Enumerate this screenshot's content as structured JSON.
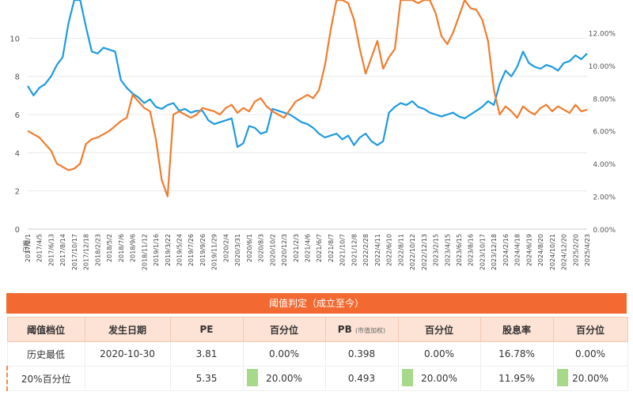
{
  "colors": {
    "pe_line": "#1e9be0",
    "pb_line": "#f07c2e",
    "grid": "#e8e8e8",
    "header_orange": "#f26a31",
    "header_row": "#fce3d6",
    "percentile_fill": "#a7d98b"
  },
  "chart_data": {
    "type": "line",
    "title": "",
    "left_axis": {
      "label": "",
      "ylim": [
        0,
        12
      ],
      "ticks": [
        "0",
        "2",
        "4",
        "6",
        "8",
        "10"
      ]
    },
    "right_axis": {
      "label": "",
      "ylim": [
        0,
        0.14
      ],
      "ticks": [
        "0.00%",
        "2.00%",
        "4.00%",
        "6.00%",
        "8.00%",
        "10.00%",
        "12.00%"
      ]
    },
    "x_label": "日期",
    "x_ticks": [
      "2017/2/1",
      "2017/4/5",
      "2017/6/13",
      "2017/8/14",
      "2017/10/17",
      "2017/12/18",
      "2018/2/23",
      "2018/5/2",
      "2018/7/6",
      "2018/9/6",
      "2018/11/12",
      "2019/1/16",
      "2019/3/22",
      "2019/5/24",
      "2019/7/26",
      "2019/9/26",
      "2019/11/29",
      "2020/2/4",
      "2020/3/31",
      "2020/6/1",
      "2020/8/3",
      "2020/10/2",
      "2020/12/3",
      "2021/2/3",
      "2021/4/6",
      "2021/6/7",
      "2021/8/7",
      "2021/10/7",
      "2021/12/8",
      "2022/2/28",
      "2022/4/11",
      "2022/6/10",
      "2022/8/11",
      "2022/10/12",
      "2022/12/13",
      "2023/2/15",
      "2023/4/15",
      "2023/6/15",
      "2023/8/16",
      "2023/10/17",
      "2023/12/18",
      "2024/2/16",
      "2024/4/18",
      "2024/6/19",
      "2024/8/20",
      "2024/10/21",
      "2024/12/20",
      "2025/2/20",
      "2025/4/23"
    ],
    "grid": true,
    "series": [
      {
        "axis": "left",
        "x": [
          0,
          0.5,
          1,
          1.5,
          2,
          2.5,
          3,
          3.5,
          4,
          4.5,
          5,
          5.5,
          6,
          6.5,
          7,
          7.5,
          8,
          8.5,
          9,
          9.5,
          10,
          10.5,
          11,
          11.5,
          12,
          12.5,
          13,
          13.5,
          14,
          14.5,
          15,
          15.5,
          16,
          16.5,
          17,
          17.5,
          18,
          18.5,
          19,
          19.5,
          20,
          20.5,
          21,
          21.5,
          22,
          22.5,
          23,
          23.5,
          24,
          24.5,
          25,
          25.5,
          26,
          26.5,
          27,
          27.5,
          28,
          28.5,
          29,
          29.5,
          30,
          30.5,
          31,
          31.5,
          32,
          32.5,
          33,
          33.5,
          34,
          34.5,
          35,
          35.5,
          36,
          36.5,
          37,
          37.5,
          38,
          38.5,
          39,
          39.5,
          40,
          40.5,
          41,
          41.5,
          42,
          42.5,
          43,
          43.5,
          44,
          44.5,
          45,
          45.5,
          46,
          46.5,
          47,
          47.5,
          48
        ],
        "values": [
          7.5,
          7.0,
          7.4,
          7.6,
          8.0,
          8.6,
          9.0,
          10.8,
          12.0,
          12.2,
          10.6,
          9.3,
          9.2,
          9.5,
          9.4,
          9.3,
          7.8,
          7.4,
          7.1,
          6.9,
          6.6,
          6.8,
          6.4,
          6.3,
          6.5,
          6.6,
          6.2,
          6.3,
          6.1,
          6.2,
          6.2,
          5.7,
          5.5,
          5.6,
          5.7,
          5.8,
          4.3,
          4.5,
          5.4,
          5.3,
          5.0,
          5.1,
          6.3,
          6.2,
          6.1,
          6.0,
          5.8,
          5.6,
          5.5,
          5.3,
          5.0,
          4.8,
          4.9,
          5.0,
          4.7,
          4.9,
          4.4,
          4.8,
          5.0,
          4.6,
          4.4,
          4.6,
          6.1,
          6.4,
          6.6,
          6.5,
          6.7,
          6.4,
          6.3,
          6.1,
          6.0,
          5.9,
          6.0,
          6.1,
          5.9,
          5.8,
          6.0,
          6.2,
          6.4,
          6.7,
          6.5,
          7.6,
          8.3,
          8.0,
          8.5,
          9.3,
          8.7,
          8.5,
          8.4,
          8.6,
          8.5,
          8.3,
          8.7,
          8.8,
          9.1,
          8.9,
          9.2
        ]
      },
      {
        "axis": "right",
        "x": [
          0,
          0.5,
          1,
          1.5,
          2,
          2.5,
          3,
          3.5,
          4,
          4.5,
          5,
          5.5,
          6,
          6.5,
          7,
          7.5,
          8,
          8.5,
          9,
          9.5,
          10,
          10.5,
          11,
          11.5,
          12,
          12.5,
          13,
          13.5,
          14,
          14.5,
          15,
          15.5,
          16,
          16.5,
          17,
          17.5,
          18,
          18.5,
          19,
          19.5,
          20,
          20.5,
          21,
          21.5,
          22,
          22.5,
          23,
          23.5,
          24,
          24.5,
          25,
          25.5,
          26,
          26.5,
          27,
          27.5,
          28,
          28.5,
          29,
          29.5,
          30,
          30.5,
          31,
          31.5,
          32,
          32.5,
          33,
          33.5,
          34,
          34.5,
          35,
          35.5,
          36,
          36.5,
          37,
          37.5,
          38,
          38.5,
          39,
          39.5,
          40,
          40.5,
          41,
          41.5,
          42,
          42.5,
          43,
          43.5,
          44,
          44.5,
          45,
          45.5,
          46,
          46.5,
          47,
          47.5,
          48
        ],
        "values": [
          0.06,
          0.058,
          0.056,
          0.052,
          0.048,
          0.04,
          0.038,
          0.036,
          0.037,
          0.04,
          0.052,
          0.055,
          0.056,
          0.058,
          0.06,
          0.063,
          0.066,
          0.068,
          0.082,
          0.078,
          0.074,
          0.072,
          0.055,
          0.03,
          0.02,
          0.07,
          0.072,
          0.07,
          0.068,
          0.07,
          0.074,
          0.073,
          0.072,
          0.07,
          0.074,
          0.076,
          0.071,
          0.074,
          0.072,
          0.078,
          0.08,
          0.075,
          0.072,
          0.07,
          0.068,
          0.073,
          0.078,
          0.08,
          0.082,
          0.08,
          0.085,
          0.1,
          0.122,
          0.14,
          0.14,
          0.138,
          0.128,
          0.11,
          0.095,
          0.105,
          0.115,
          0.098,
          0.105,
          0.11,
          0.14,
          0.145,
          0.14,
          0.138,
          0.142,
          0.14,
          0.132,
          0.118,
          0.113,
          0.12,
          0.13,
          0.14,
          0.135,
          0.134,
          0.128,
          0.115,
          0.085,
          0.07,
          0.075,
          0.072,
          0.068,
          0.075,
          0.072,
          0.07,
          0.074,
          0.076,
          0.072,
          0.075,
          0.073,
          0.071,
          0.076,
          0.072,
          0.073
        ]
      }
    ]
  },
  "table": {
    "title": "阈值判定（成立至今）",
    "headers": [
      "阈值档位",
      "发生日期",
      "PE",
      "百分位",
      "PB",
      "百分位",
      "股息率",
      "百分位"
    ],
    "pb_note": "(市值加权)",
    "rows": [
      {
        "level": "历史最低",
        "date": "2020-10-30",
        "pe": "3.81",
        "pe_pct": "0.00%",
        "pb": "0.398",
        "pb_pct": "0.00%",
        "div": "16.78%",
        "div_pct": "0.00%"
      },
      {
        "level": "20%百分位",
        "date": "",
        "pe": "5.35",
        "pe_pct": "20.00%",
        "pb": "0.493",
        "pb_pct": "20.00%",
        "div": "11.95%",
        "div_pct": "20.00%"
      }
    ]
  }
}
